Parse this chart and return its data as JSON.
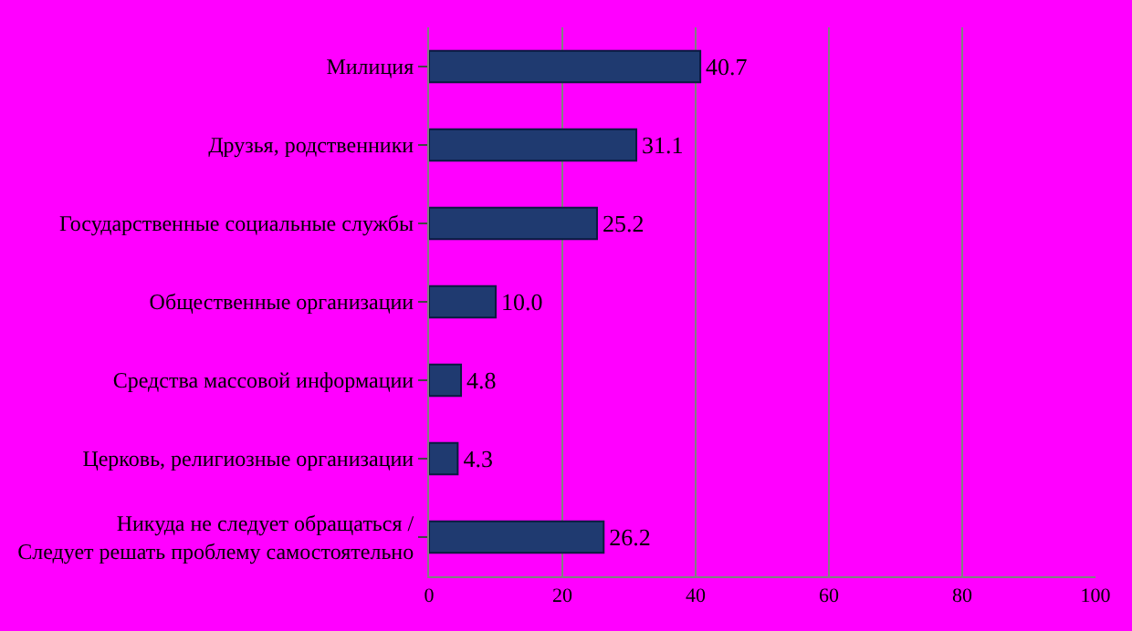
{
  "chart_data": {
    "type": "bar",
    "orientation": "horizontal",
    "categories": [
      "Милиция",
      "Друзья, родственники",
      "Государственные социальные службы",
      "Общественные организации",
      "Средства массовой информации",
      "Церковь, религиозные организации",
      "Никуда не следует обращаться / Следует решать проблему самостоятельно"
    ],
    "values": [
      40.7,
      31.1,
      25.2,
      10.0,
      4.8,
      4.3,
      26.2
    ],
    "value_labels": [
      "40.7",
      "31.1",
      "25.2",
      "10.0",
      "4.8",
      "4.3",
      "26.2"
    ],
    "color": "#1f3a70",
    "xlim": [
      0,
      100
    ],
    "xticks": [
      0,
      20,
      40,
      60,
      80,
      100
    ],
    "grid": "x"
  }
}
